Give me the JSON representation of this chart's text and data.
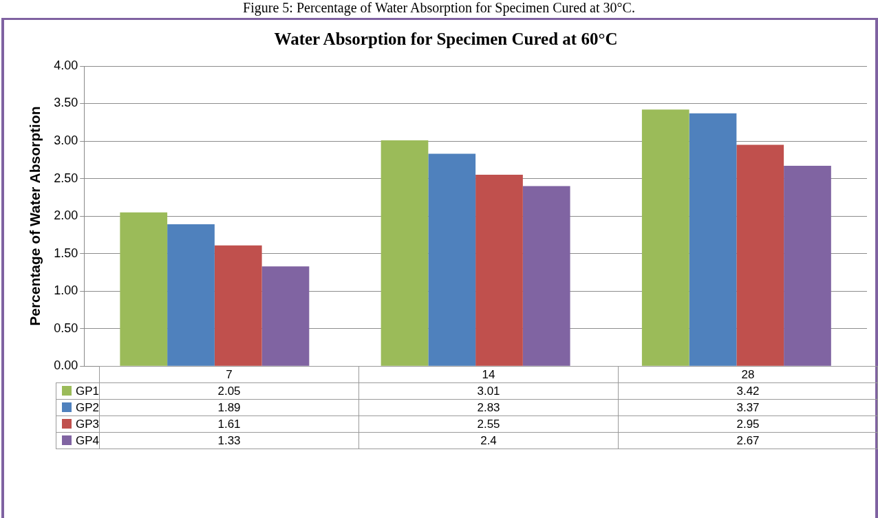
{
  "chart_data": {
    "type": "bar",
    "title": "Water Absorption for Specimen Cured at 60°C",
    "ylabel": "Percentage of Water Absorption",
    "annotations": [
      "Figure 5: Percentage of Water Absorption for Specimen Cured at 30°C."
    ],
    "categories": [
      "7",
      "14",
      "28"
    ],
    "series": [
      {
        "name": "GP1",
        "color": "#9bbb59",
        "values": [
          2.05,
          3.01,
          3.42
        ]
      },
      {
        "name": "GP2",
        "color": "#4f81bd",
        "values": [
          1.89,
          2.83,
          3.37
        ]
      },
      {
        "name": "GP3",
        "color": "#c0504d",
        "values": [
          1.61,
          2.55,
          2.95
        ]
      },
      {
        "name": "GP4",
        "color": "#8064a2",
        "values": [
          1.33,
          2.4,
          2.67
        ]
      }
    ],
    "value_labels": [
      [
        "2.05",
        "3.01",
        "3.42"
      ],
      [
        "1.89",
        "2.83",
        "3.37"
      ],
      [
        "1.61",
        "2.55",
        "2.95"
      ],
      [
        "1.33",
        "2.4",
        "2.67"
      ]
    ],
    "ylim": [
      0,
      4
    ],
    "yticks": [
      {
        "value": 0,
        "label": "0.00"
      },
      {
        "value": 0.5,
        "label": "0.50"
      },
      {
        "value": 1,
        "label": "1.00"
      },
      {
        "value": 1.5,
        "label": "1.50"
      },
      {
        "value": 2,
        "label": "2.00"
      },
      {
        "value": 2.5,
        "label": "2.50"
      },
      {
        "value": 3,
        "label": "3.00"
      },
      {
        "value": 3.5,
        "label": "3.50"
      },
      {
        "value": 4,
        "label": "4.00"
      }
    ],
    "grid": "y",
    "legend": "bottom"
  }
}
